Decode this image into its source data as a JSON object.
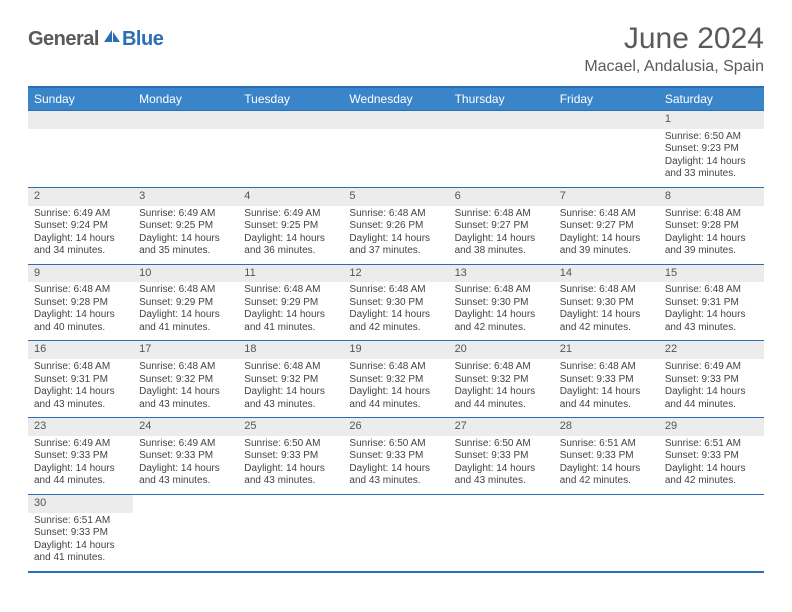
{
  "logo": {
    "part1": "General",
    "part2": "Blue"
  },
  "title": "June 2024",
  "location": "Macael, Andalusia, Spain",
  "colors": {
    "header_bg": "#3a85c9",
    "border": "#2a6fb5",
    "daynum_bg": "#ececec",
    "text": "#444444"
  },
  "day_names": [
    "Sunday",
    "Monday",
    "Tuesday",
    "Wednesday",
    "Thursday",
    "Friday",
    "Saturday"
  ],
  "weeks": [
    [
      null,
      null,
      null,
      null,
      null,
      null,
      {
        "n": "1",
        "sr": "6:50 AM",
        "ss": "9:23 PM",
        "dl": "14 hours and 33 minutes."
      }
    ],
    [
      {
        "n": "2",
        "sr": "6:49 AM",
        "ss": "9:24 PM",
        "dl": "14 hours and 34 minutes."
      },
      {
        "n": "3",
        "sr": "6:49 AM",
        "ss": "9:25 PM",
        "dl": "14 hours and 35 minutes."
      },
      {
        "n": "4",
        "sr": "6:49 AM",
        "ss": "9:25 PM",
        "dl": "14 hours and 36 minutes."
      },
      {
        "n": "5",
        "sr": "6:48 AM",
        "ss": "9:26 PM",
        "dl": "14 hours and 37 minutes."
      },
      {
        "n": "6",
        "sr": "6:48 AM",
        "ss": "9:27 PM",
        "dl": "14 hours and 38 minutes."
      },
      {
        "n": "7",
        "sr": "6:48 AM",
        "ss": "9:27 PM",
        "dl": "14 hours and 39 minutes."
      },
      {
        "n": "8",
        "sr": "6:48 AM",
        "ss": "9:28 PM",
        "dl": "14 hours and 39 minutes."
      }
    ],
    [
      {
        "n": "9",
        "sr": "6:48 AM",
        "ss": "9:28 PM",
        "dl": "14 hours and 40 minutes."
      },
      {
        "n": "10",
        "sr": "6:48 AM",
        "ss": "9:29 PM",
        "dl": "14 hours and 41 minutes."
      },
      {
        "n": "11",
        "sr": "6:48 AM",
        "ss": "9:29 PM",
        "dl": "14 hours and 41 minutes."
      },
      {
        "n": "12",
        "sr": "6:48 AM",
        "ss": "9:30 PM",
        "dl": "14 hours and 42 minutes."
      },
      {
        "n": "13",
        "sr": "6:48 AM",
        "ss": "9:30 PM",
        "dl": "14 hours and 42 minutes."
      },
      {
        "n": "14",
        "sr": "6:48 AM",
        "ss": "9:30 PM",
        "dl": "14 hours and 42 minutes."
      },
      {
        "n": "15",
        "sr": "6:48 AM",
        "ss": "9:31 PM",
        "dl": "14 hours and 43 minutes."
      }
    ],
    [
      {
        "n": "16",
        "sr": "6:48 AM",
        "ss": "9:31 PM",
        "dl": "14 hours and 43 minutes."
      },
      {
        "n": "17",
        "sr": "6:48 AM",
        "ss": "9:32 PM",
        "dl": "14 hours and 43 minutes."
      },
      {
        "n": "18",
        "sr": "6:48 AM",
        "ss": "9:32 PM",
        "dl": "14 hours and 43 minutes."
      },
      {
        "n": "19",
        "sr": "6:48 AM",
        "ss": "9:32 PM",
        "dl": "14 hours and 44 minutes."
      },
      {
        "n": "20",
        "sr": "6:48 AM",
        "ss": "9:32 PM",
        "dl": "14 hours and 44 minutes."
      },
      {
        "n": "21",
        "sr": "6:48 AM",
        "ss": "9:33 PM",
        "dl": "14 hours and 44 minutes."
      },
      {
        "n": "22",
        "sr": "6:49 AM",
        "ss": "9:33 PM",
        "dl": "14 hours and 44 minutes."
      }
    ],
    [
      {
        "n": "23",
        "sr": "6:49 AM",
        "ss": "9:33 PM",
        "dl": "14 hours and 44 minutes."
      },
      {
        "n": "24",
        "sr": "6:49 AM",
        "ss": "9:33 PM",
        "dl": "14 hours and 43 minutes."
      },
      {
        "n": "25",
        "sr": "6:50 AM",
        "ss": "9:33 PM",
        "dl": "14 hours and 43 minutes."
      },
      {
        "n": "26",
        "sr": "6:50 AM",
        "ss": "9:33 PM",
        "dl": "14 hours and 43 minutes."
      },
      {
        "n": "27",
        "sr": "6:50 AM",
        "ss": "9:33 PM",
        "dl": "14 hours and 43 minutes."
      },
      {
        "n": "28",
        "sr": "6:51 AM",
        "ss": "9:33 PM",
        "dl": "14 hours and 42 minutes."
      },
      {
        "n": "29",
        "sr": "6:51 AM",
        "ss": "9:33 PM",
        "dl": "14 hours and 42 minutes."
      }
    ],
    [
      {
        "n": "30",
        "sr": "6:51 AM",
        "ss": "9:33 PM",
        "dl": "14 hours and 41 minutes."
      },
      null,
      null,
      null,
      null,
      null,
      null
    ]
  ],
  "labels": {
    "sunrise": "Sunrise:",
    "sunset": "Sunset:",
    "daylight": "Daylight:"
  }
}
